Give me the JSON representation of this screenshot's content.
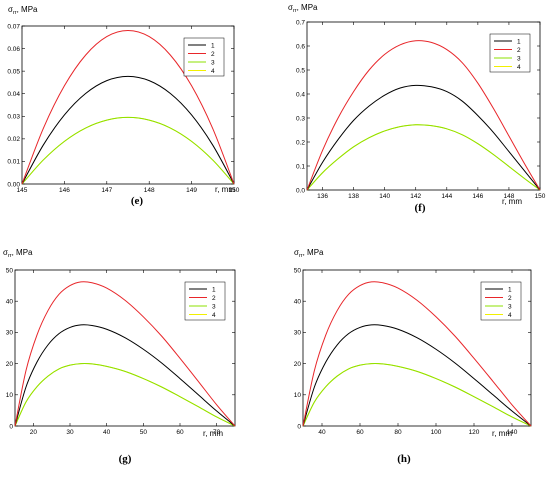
{
  "chart_data": [
    {
      "type": "line",
      "panel_label": "(e)",
      "ylabel_sym": "σ",
      "ylabel_sub": "rr",
      "ylabel_unit": ", MPa",
      "xlabel": "r, mm",
      "xlim": [
        145,
        150
      ],
      "ylim": [
        0,
        0.07
      ],
      "xticks": [
        "145",
        "146",
        "147",
        "148",
        "149",
        "150"
      ],
      "yticks": [
        "0.00",
        "0.01",
        "0.02",
        "0.03",
        "0.04",
        "0.05",
        "0.06",
        "0.07"
      ],
      "legend": [
        "1",
        "2",
        "3",
        "4"
      ],
      "series": [
        {
          "name": "1",
          "x": [
            145,
            145.5,
            146,
            146.5,
            147,
            147.5,
            148,
            148.5,
            149,
            149.5,
            150
          ],
          "y": [
            0,
            0.0172,
            0.0306,
            0.0401,
            0.0458,
            0.0477,
            0.0458,
            0.0401,
            0.0306,
            0.0172,
            0
          ]
        },
        {
          "name": "2",
          "x": [
            145,
            145.5,
            146,
            146.5,
            147,
            147.5,
            148,
            148.5,
            149,
            149.5,
            150
          ],
          "y": [
            0,
            0.0245,
            0.0435,
            0.0571,
            0.0653,
            0.068,
            0.0653,
            0.0571,
            0.0435,
            0.0245,
            0
          ]
        },
        {
          "name": "3",
          "x": [
            145,
            145.5,
            146,
            146.5,
            147,
            147.5,
            148,
            148.5,
            149,
            149.5,
            150
          ],
          "y": [
            0,
            0.0106,
            0.0189,
            0.0248,
            0.0283,
            0.0295,
            0.0283,
            0.0248,
            0.0189,
            0.0106,
            0
          ]
        },
        {
          "name": "4",
          "x": [
            145,
            145.5,
            146,
            146.5,
            147,
            147.5,
            148,
            148.5,
            149,
            149.5,
            150
          ],
          "y": [
            0,
            0.0106,
            0.0189,
            0.0248,
            0.0283,
            0.0295,
            0.0283,
            0.0248,
            0.0189,
            0.0106,
            0
          ]
        }
      ]
    },
    {
      "type": "line",
      "panel_label": "(f)",
      "ylabel_sym": "σ",
      "ylabel_sub": "rr",
      "ylabel_unit": ", MPa",
      "xlabel": "r, mm",
      "xlim": [
        135,
        150
      ],
      "ylim": [
        0,
        0.7
      ],
      "xticks": [
        "136",
        "138",
        "140",
        "142",
        "144",
        "146",
        "148",
        "150"
      ],
      "yticks": [
        "0.0",
        "0.1",
        "0.2",
        "0.3",
        "0.4",
        "0.5",
        "0.6",
        "0.7"
      ],
      "legend": [
        "1",
        "2",
        "3",
        "4"
      ],
      "series": [
        {
          "name": "1",
          "x": [
            135,
            136,
            137,
            138,
            139,
            140,
            141,
            142,
            143,
            144,
            145,
            146,
            147,
            148,
            149,
            150
          ],
          "y": [
            0,
            0.115,
            0.21,
            0.29,
            0.35,
            0.395,
            0.425,
            0.436,
            0.43,
            0.41,
            0.37,
            0.31,
            0.24,
            0.16,
            0.08,
            0
          ]
        },
        {
          "name": "2",
          "x": [
            135,
            136,
            137,
            138,
            139,
            140,
            141,
            142,
            143,
            144,
            145,
            146,
            147,
            148,
            149,
            150
          ],
          "y": [
            0,
            0.165,
            0.3,
            0.41,
            0.5,
            0.565,
            0.605,
            0.622,
            0.615,
            0.585,
            0.53,
            0.445,
            0.34,
            0.225,
            0.11,
            0
          ]
        },
        {
          "name": "3",
          "x": [
            135,
            136,
            137,
            138,
            139,
            140,
            141,
            142,
            143,
            144,
            145,
            146,
            147,
            148,
            149,
            150
          ],
          "y": [
            0,
            0.072,
            0.13,
            0.18,
            0.218,
            0.246,
            0.264,
            0.272,
            0.268,
            0.255,
            0.23,
            0.193,
            0.148,
            0.098,
            0.048,
            0
          ]
        },
        {
          "name": "4",
          "x": [
            135,
            136,
            137,
            138,
            139,
            140,
            141,
            142,
            143,
            144,
            145,
            146,
            147,
            148,
            149,
            150
          ],
          "y": [
            0,
            0.072,
            0.13,
            0.18,
            0.218,
            0.246,
            0.264,
            0.272,
            0.268,
            0.255,
            0.23,
            0.193,
            0.148,
            0.098,
            0.048,
            0
          ]
        }
      ]
    },
    {
      "type": "line",
      "panel_label": "(g)",
      "ylabel_sym": "σ",
      "ylabel_sub": "rr",
      "ylabel_unit": ", MPa",
      "xlabel": "r, mm",
      "xlim": [
        15,
        75
      ],
      "ylim": [
        0,
        50
      ],
      "xticks": [
        "20",
        "30",
        "40",
        "50",
        "60",
        "70"
      ],
      "yticks": [
        "0",
        "10",
        "20",
        "30",
        "40",
        "50"
      ],
      "legend": [
        "1",
        "2",
        "3",
        "4"
      ],
      "series": [
        {
          "name": "1",
          "x": [
            15,
            18,
            21,
            24,
            27,
            30,
            33,
            36,
            40,
            45,
            50,
            55,
            60,
            65,
            70,
            75
          ],
          "y": [
            0,
            12.5,
            20.5,
            26,
            29.6,
            31.6,
            32.4,
            32.2,
            31,
            28.3,
            24.6,
            20.2,
            15.2,
            10,
            4.8,
            0
          ]
        },
        {
          "name": "2",
          "x": [
            15,
            18,
            21,
            24,
            27,
            30,
            33,
            36,
            40,
            45,
            50,
            55,
            60,
            65,
            70,
            75
          ],
          "y": [
            0,
            17.8,
            29.2,
            37,
            42.2,
            45,
            46.2,
            45.9,
            44.2,
            40.3,
            35,
            28.8,
            21.7,
            14.3,
            6.8,
            0
          ]
        },
        {
          "name": "3",
          "x": [
            15,
            18,
            21,
            24,
            27,
            30,
            33,
            36,
            40,
            45,
            50,
            55,
            60,
            65,
            70,
            75
          ],
          "y": [
            0,
            7.7,
            12.6,
            16,
            18.3,
            19.5,
            20,
            19.9,
            19.1,
            17.5,
            15.2,
            12.5,
            9.4,
            6.2,
            2.9,
            0
          ]
        },
        {
          "name": "4",
          "x": [
            15,
            18,
            21,
            24,
            27,
            30,
            33,
            36,
            40,
            45,
            50,
            55,
            60,
            65,
            70,
            75
          ],
          "y": [
            0,
            7.7,
            12.6,
            16,
            18.3,
            19.5,
            20,
            19.9,
            19.1,
            17.5,
            15.2,
            12.5,
            9.4,
            6.2,
            2.9,
            0
          ]
        }
      ]
    },
    {
      "type": "line",
      "panel_label": "(h)",
      "ylabel_sym": "σ",
      "ylabel_sub": "rr",
      "ylabel_unit": ", MPa",
      "xlabel": "r, mm",
      "xlim": [
        30,
        150
      ],
      "ylim": [
        0,
        50
      ],
      "xticks": [
        "40",
        "60",
        "80",
        "100",
        "120",
        "140"
      ],
      "yticks": [
        "0",
        "10",
        "20",
        "30",
        "40",
        "50"
      ],
      "legend": [
        "1",
        "2",
        "3",
        "4"
      ],
      "series": [
        {
          "name": "1",
          "x": [
            30,
            36,
            42,
            48,
            54,
            60,
            66,
            72,
            80,
            90,
            100,
            110,
            120,
            130,
            140,
            150
          ],
          "y": [
            0,
            12.5,
            20.5,
            26,
            29.6,
            31.6,
            32.4,
            32.2,
            31,
            28.3,
            24.6,
            20.2,
            15.2,
            10,
            4.8,
            0
          ]
        },
        {
          "name": "2",
          "x": [
            30,
            36,
            42,
            48,
            54,
            60,
            66,
            72,
            80,
            90,
            100,
            110,
            120,
            130,
            140,
            150
          ],
          "y": [
            0,
            17.8,
            29.2,
            37,
            42.2,
            45,
            46.2,
            45.9,
            44.2,
            40.3,
            35,
            28.8,
            21.7,
            14.3,
            6.8,
            0
          ]
        },
        {
          "name": "3",
          "x": [
            30,
            36,
            42,
            48,
            54,
            60,
            66,
            72,
            80,
            90,
            100,
            110,
            120,
            130,
            140,
            150
          ],
          "y": [
            0,
            7.7,
            12.6,
            16,
            18.3,
            19.5,
            20,
            19.9,
            19.1,
            17.5,
            15.2,
            12.5,
            9.4,
            6.2,
            2.9,
            0
          ]
        },
        {
          "name": "4",
          "x": [
            30,
            36,
            42,
            48,
            54,
            60,
            66,
            72,
            80,
            90,
            100,
            110,
            120,
            130,
            140,
            150
          ],
          "y": [
            0,
            7.7,
            12.6,
            16,
            18.3,
            19.5,
            20,
            19.9,
            19.1,
            17.5,
            15.2,
            12.5,
            9.4,
            6.2,
            2.9,
            0
          ]
        }
      ]
    }
  ],
  "colors": {
    "series_1": "#000000",
    "series_2": "#e8262a",
    "series_3": "#8ee000",
    "series_4": "#f2f000"
  }
}
